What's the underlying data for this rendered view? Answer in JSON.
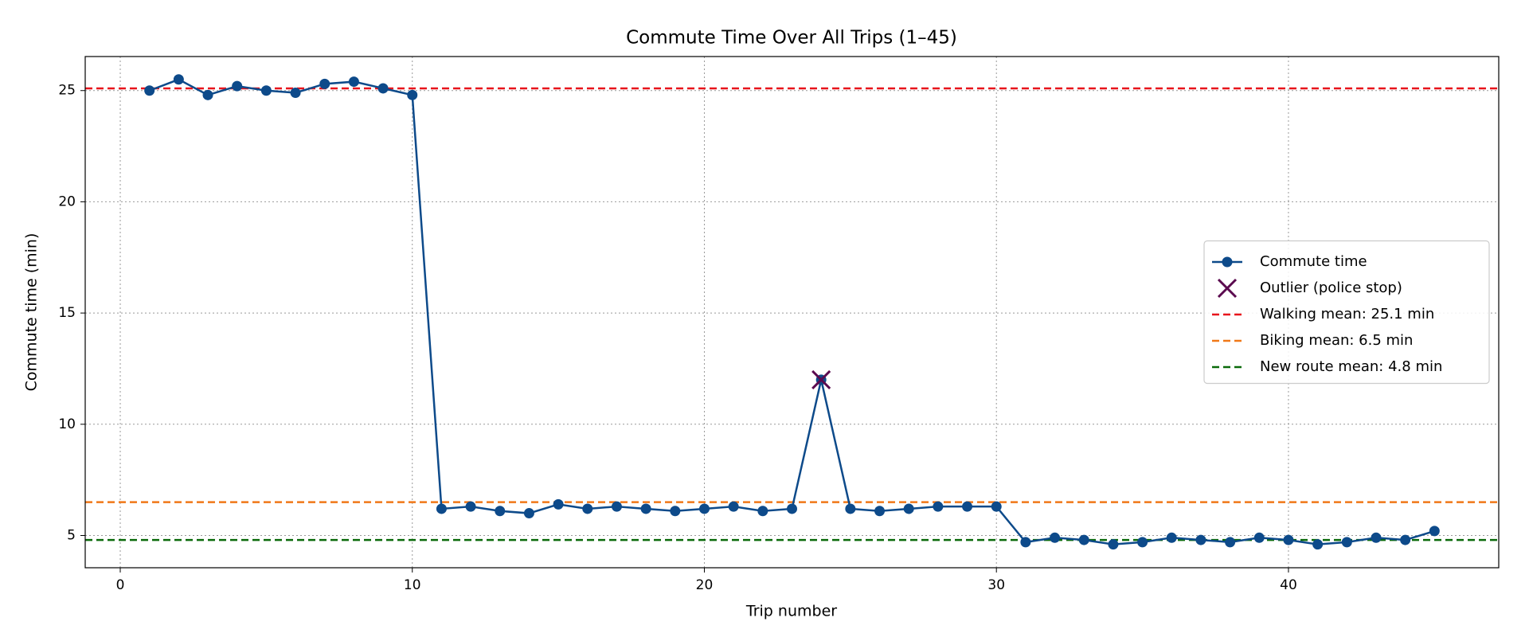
{
  "chart_data": {
    "type": "line",
    "title": "Commute Time Over All Trips (1–45)",
    "xlabel": "Trip number",
    "ylabel": "Commute time (min)",
    "x": [
      1,
      2,
      3,
      4,
      5,
      6,
      7,
      8,
      9,
      10,
      11,
      12,
      13,
      14,
      15,
      16,
      17,
      18,
      19,
      20,
      21,
      22,
      23,
      24,
      25,
      26,
      27,
      28,
      29,
      30,
      31,
      32,
      33,
      34,
      35,
      36,
      37,
      38,
      39,
      40,
      41,
      42,
      43,
      44,
      45
    ],
    "series": [
      {
        "name": "Commute time",
        "color": "#0d4a8a",
        "values": [
          25.0,
          25.5,
          24.8,
          25.2,
          25.0,
          24.9,
          25.3,
          25.4,
          25.1,
          24.8,
          6.2,
          6.3,
          6.1,
          6.0,
          6.4,
          6.2,
          6.3,
          6.2,
          6.1,
          6.2,
          6.3,
          6.1,
          6.2,
          12.0,
          6.2,
          6.1,
          6.2,
          6.3,
          6.3,
          6.3,
          4.7,
          4.9,
          4.8,
          4.6,
          4.7,
          4.9,
          4.8,
          4.7,
          4.9,
          4.8,
          4.6,
          4.7,
          4.9,
          4.8,
          5.2
        ]
      }
    ],
    "outlier": {
      "name": "Outlier (police stop)",
      "x": 24,
      "y": 12.0,
      "color": "#5b0a4f"
    },
    "hlines": [
      {
        "name": "Walking mean: 25.1 min",
        "value": 25.1,
        "color": "#e8141c"
      },
      {
        "name": "Biking mean: 6.5 min",
        "value": 6.5,
        "color": "#f07818"
      },
      {
        "name": "New route mean: 4.8 min",
        "value": 4.8,
        "color": "#0a6a0a"
      }
    ],
    "xlim": [
      -1.2,
      47.2
    ],
    "ylim": [
      3.55,
      26.53
    ],
    "xticks": [
      0,
      10,
      20,
      30,
      40
    ],
    "yticks": [
      5,
      10,
      15,
      20,
      25
    ],
    "grid": true,
    "legend": "center right"
  }
}
